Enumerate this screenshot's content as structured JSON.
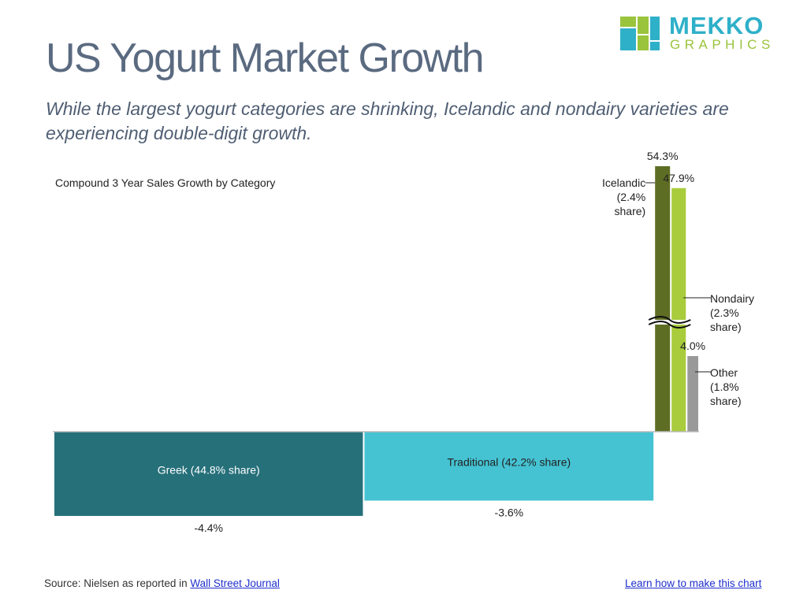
{
  "title": "US Yogurt Market Growth",
  "subtitle": "While the largest yogurt categories are shrinking, Icelandic and nondairy varieties are experiencing double-digit growth.",
  "logo": {
    "main": "MEKKO",
    "sub": "GRAPHICS"
  },
  "colors": {
    "greek": "#26707a",
    "traditional": "#45c3d3",
    "icelandic": "#5d6e24",
    "nondairy": "#a8cc3c",
    "other": "#999999",
    "title": "#5a6a80"
  },
  "chart_data": {
    "type": "bar",
    "chart_title": "Compound 3 Year Sales Growth by Category",
    "axis_break": true,
    "categories": [
      {
        "name": "Greek",
        "share": 44.8,
        "growth": -4.4,
        "label": "Greek (44.8% share)",
        "value_label": "-4.4%"
      },
      {
        "name": "Traditional",
        "share": 42.2,
        "growth": -3.6,
        "label": "Traditional (42.2% share)",
        "value_label": "-3.6%"
      },
      {
        "name": "Icelandic",
        "share": 2.4,
        "growth": 54.3,
        "label_lines": [
          "Icelandic",
          "(2.4%",
          "share)"
        ],
        "value_label": "54.3%"
      },
      {
        "name": "Nondairy",
        "share": 2.3,
        "growth": 47.9,
        "label_lines": [
          "Nondairy",
          "(2.3%",
          "share)"
        ],
        "value_label": "47.9%"
      },
      {
        "name": "Other",
        "share": 1.8,
        "growth": 4.0,
        "label_lines": [
          "Other",
          "(1.8%",
          "share)"
        ],
        "value_label": "4.0%"
      }
    ]
  },
  "footer": {
    "source_prefix": "Source: Nielsen as reported in ",
    "source_link": "Wall Street Journal",
    "learn_link": "Learn how to make this chart"
  }
}
